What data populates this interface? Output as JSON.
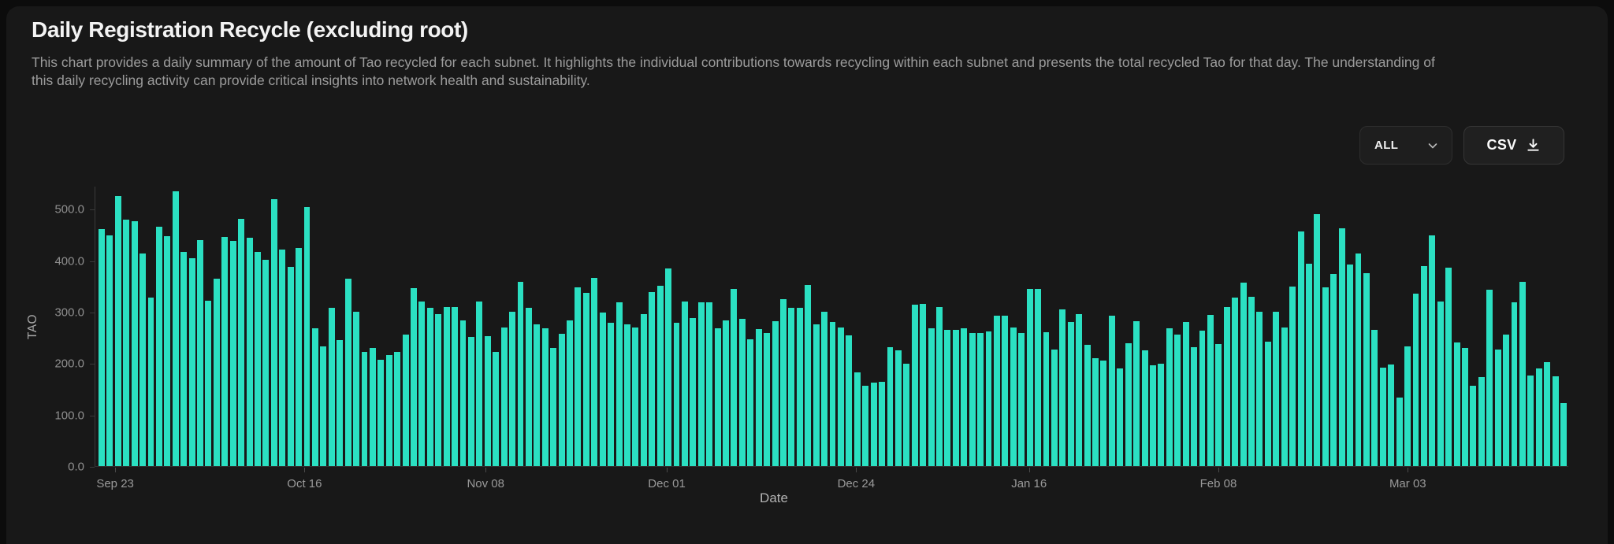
{
  "header": {
    "title": "Daily Registration Recycle (excluding root)",
    "description": "This chart provides a daily summary of the amount of Tao recycled for each subnet. It highlights the individual contributions towards recycling within each subnet and presents the total recycled Tao for that day. The understanding of this daily recycling activity can provide critical insights into network health and sustainability."
  },
  "controls": {
    "range_selector": {
      "value": "ALL"
    },
    "csv_button": {
      "label": "CSV"
    }
  },
  "colors": {
    "bar": "#2be0c2",
    "card_background": "#181818",
    "page_background": "#0c0c0c",
    "title_text": "#f3f3f3",
    "muted_text": "#9c9c9c",
    "axis_text": "#8f8f8f"
  },
  "chart_data": {
    "type": "bar",
    "title": "Daily Registration Recycle (excluding root)",
    "xlabel": "Date",
    "ylabel": "TAO",
    "ylim": [
      0,
      545
    ],
    "grid": false,
    "legend": false,
    "unit": "TAO",
    "y_ticks": [
      {
        "value": 0,
        "label": "0.0"
      },
      {
        "value": 100,
        "label": "100.0"
      },
      {
        "value": 200,
        "label": "200.0"
      },
      {
        "value": 300,
        "label": "300.0"
      },
      {
        "value": 400,
        "label": "400.0"
      },
      {
        "value": 500,
        "label": "500.0"
      }
    ],
    "x_ticks": [
      {
        "index": 2,
        "label": "Sep 23"
      },
      {
        "index": 25,
        "label": "Oct 16"
      },
      {
        "index": 47,
        "label": "Nov 08"
      },
      {
        "index": 69,
        "label": "Dec 01"
      },
      {
        "index": 92,
        "label": "Dec 24"
      },
      {
        "index": 113,
        "label": "Jan 16"
      },
      {
        "index": 136,
        "label": "Feb 08"
      },
      {
        "index": 159,
        "label": "Mar 03"
      }
    ],
    "values": [
      462,
      450,
      527,
      481,
      478,
      415,
      328,
      467,
      449,
      536,
      417,
      406,
      440,
      323,
      366,
      447,
      439,
      482,
      445,
      418,
      403,
      521,
      422,
      389,
      425,
      505,
      268,
      233,
      308,
      246,
      366,
      301,
      222,
      230,
      207,
      216,
      223,
      257,
      347,
      321,
      308,
      296,
      310,
      310,
      284,
      252,
      321,
      253,
      223,
      270,
      301,
      360,
      308,
      276,
      269,
      230,
      258,
      284,
      349,
      338,
      367,
      300,
      279,
      320,
      276,
      270,
      297,
      340,
      352,
      385,
      279,
      321,
      288,
      320,
      320,
      268,
      284,
      345,
      287,
      247,
      267,
      260,
      283,
      326,
      308,
      308,
      353,
      277,
      301,
      281,
      270,
      255,
      183,
      156,
      162,
      165,
      232,
      226,
      199,
      315,
      316,
      268,
      310,
      266,
      265,
      268,
      260,
      259,
      262,
      293,
      294,
      270,
      259,
      345,
      345,
      261,
      228,
      306,
      281,
      297,
      237,
      210,
      205,
      294,
      190,
      240,
      282,
      225,
      196,
      199,
      268,
      257,
      281,
      232,
      264,
      295,
      238,
      310,
      328,
      358,
      330,
      301,
      243,
      301,
      270,
      350,
      458,
      395,
      491,
      348,
      375,
      464,
      393,
      415,
      376,
      266,
      192,
      198,
      134,
      233,
      336,
      390,
      450,
      321,
      387,
      241,
      230,
      157,
      173,
      344,
      228,
      256,
      320,
      360,
      176,
      190,
      202,
      175,
      123
    ]
  }
}
